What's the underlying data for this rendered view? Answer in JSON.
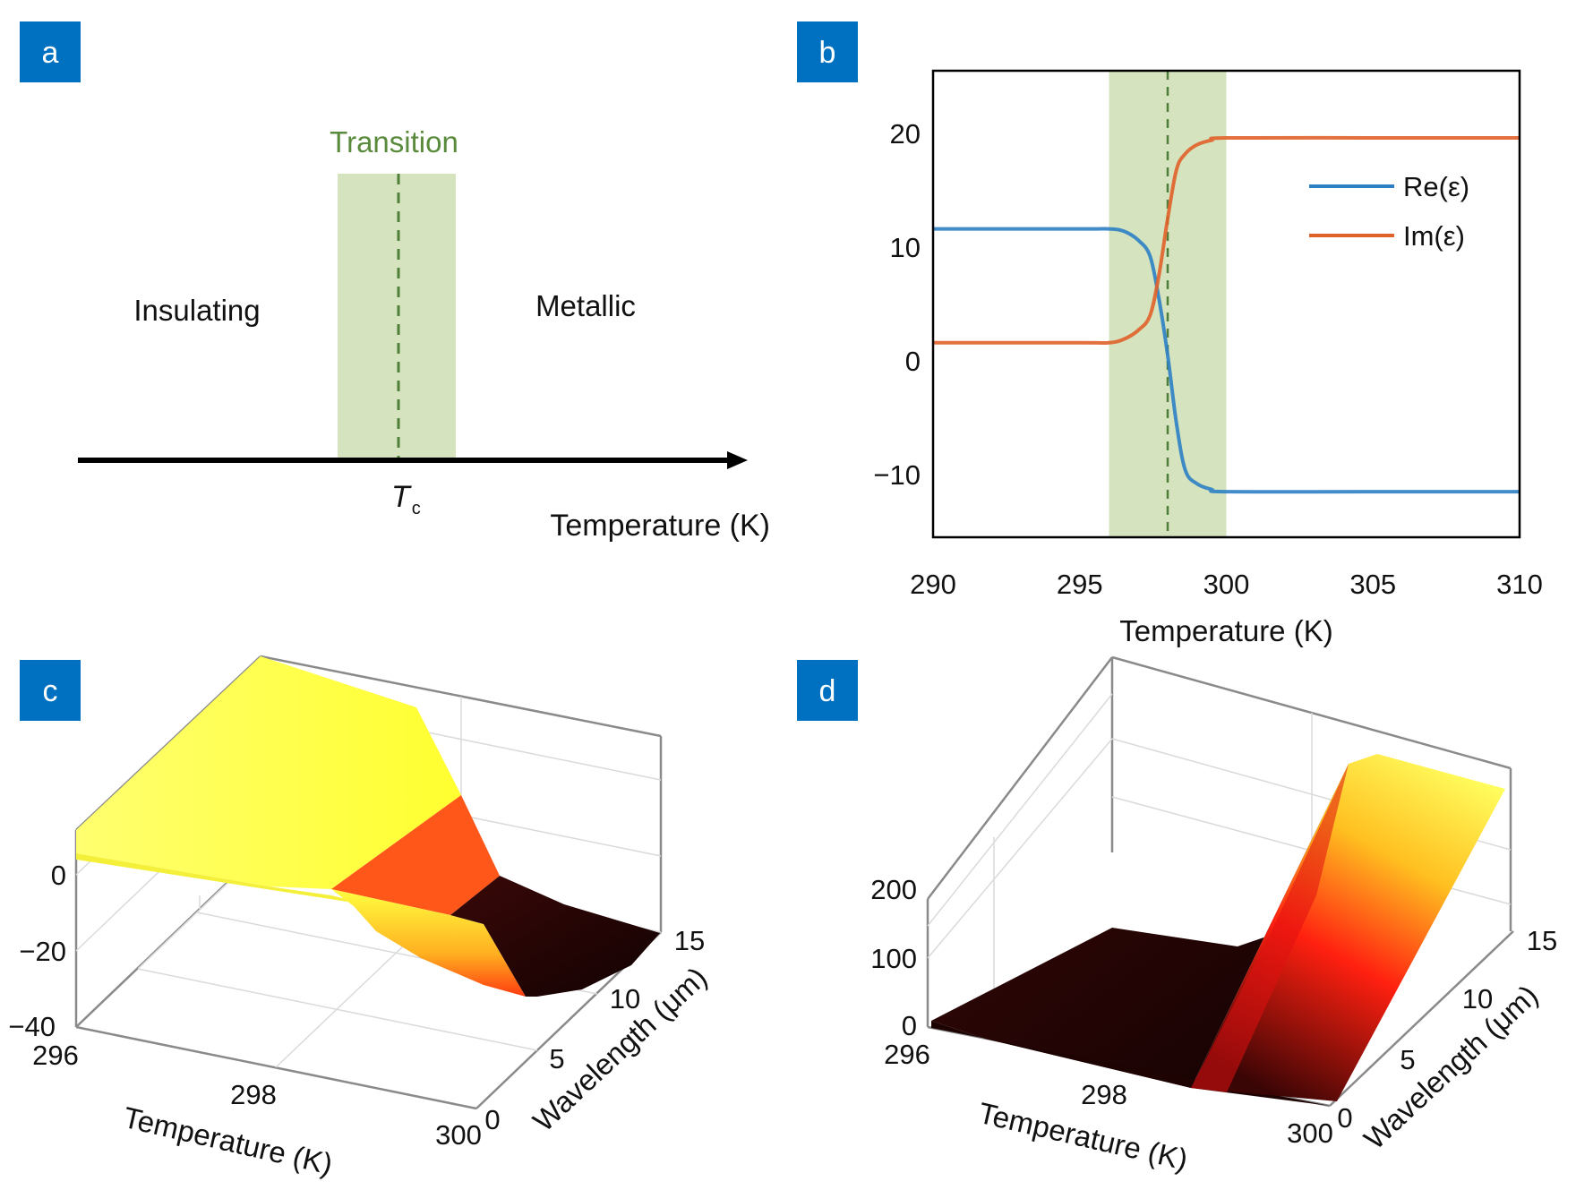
{
  "colors": {
    "tag_bg": "#0070c0",
    "tag_fg": "#ffffff",
    "band": "#d5e4bf",
    "dash": "#4f7f3a",
    "transition_text": "#5a8a3c",
    "re": "#2e7fc4",
    "im": "#e0612a",
    "axis": "#000000",
    "box3d": "#8a8a8a",
    "grid3d": "#dadada"
  },
  "panels": {
    "a": {
      "tag": "a",
      "transition_label": "Transition",
      "insulating_label": "Insulating",
      "metallic_label": "Metallic",
      "tc_main": "T",
      "tc_sub": "c",
      "axis_label": "Temperature (K)"
    },
    "b": {
      "tag": "b"
    },
    "c": {
      "tag": "c"
    },
    "d": {
      "tag": "d"
    }
  },
  "chart_data": [
    {
      "panel": "a",
      "type": "diagram",
      "title": "",
      "regions": [
        "Insulating",
        "Transition",
        "Metallic"
      ],
      "marker": "Tc",
      "xlabel": "Temperature (K)"
    },
    {
      "panel": "b",
      "type": "line",
      "xlabel": "Temperature (K)",
      "ylabel": "",
      "xlim": [
        290,
        310
      ],
      "ylim": [
        -15.5,
        25.5
      ],
      "xticks": [
        290,
        295,
        300,
        305,
        310
      ],
      "yticks": [
        -10,
        0,
        10,
        20
      ],
      "ytick_labels": [
        "−10",
        "0",
        "10",
        "20"
      ],
      "shaded_band": [
        296,
        300
      ],
      "dashed_vline": 298,
      "legend_position": "upper-right",
      "grid": false,
      "x": [
        290,
        295,
        296,
        296.5,
        297,
        297.4,
        297.7,
        298,
        298.3,
        298.6,
        299,
        299.5,
        300,
        305,
        310
      ],
      "series": [
        {
          "name": "Re(ε)",
          "color": "#2e7fc4",
          "values": [
            11.6,
            11.6,
            11.6,
            11.4,
            10.6,
            9.2,
            5.5,
            0.5,
            -5.5,
            -9.6,
            -10.8,
            -11.3,
            -11.5,
            -11.5,
            -11.5
          ]
        },
        {
          "name": "Im(ε)",
          "color": "#e0612a",
          "values": [
            1.6,
            1.6,
            1.6,
            1.9,
            2.7,
            4.0,
            7.5,
            12.5,
            16.8,
            18.2,
            19.0,
            19.4,
            19.6,
            19.6,
            19.6
          ]
        }
      ]
    },
    {
      "panel": "c",
      "type": "surface",
      "xlabel": "Temperature (K)",
      "ylabel": "Wavelength (μm)",
      "zlabel": "",
      "xticks": [
        "296",
        "298",
        "300"
      ],
      "yticks": [
        "0",
        "5",
        "10",
        "15"
      ],
      "zticks": [
        "−40",
        "−20",
        "0"
      ],
      "xlim": [
        296,
        300
      ],
      "ylim": [
        0,
        15
      ],
      "zlim": [
        -40,
        12
      ],
      "description": "Re(ε) surface: high plateau (~10) below Tc dropping through the transition to about −35 at 300 K",
      "colormap": "hot"
    },
    {
      "panel": "d",
      "type": "surface",
      "xlabel": "Temperature (K)",
      "ylabel": "Wavelength (μm)",
      "zlabel": "",
      "xticks": [
        "296",
        "298",
        "300"
      ],
      "yticks": [
        "0",
        "5",
        "10",
        "15"
      ],
      "zticks": [
        "0",
        "100",
        "200"
      ],
      "xlim": [
        296,
        300
      ],
      "ylim": [
        0,
        15
      ],
      "zlim": [
        0,
        260
      ],
      "description": "Im(ε) surface: near zero below Tc, rising steeply after the transition and growing with wavelength",
      "colormap": "hot"
    }
  ]
}
